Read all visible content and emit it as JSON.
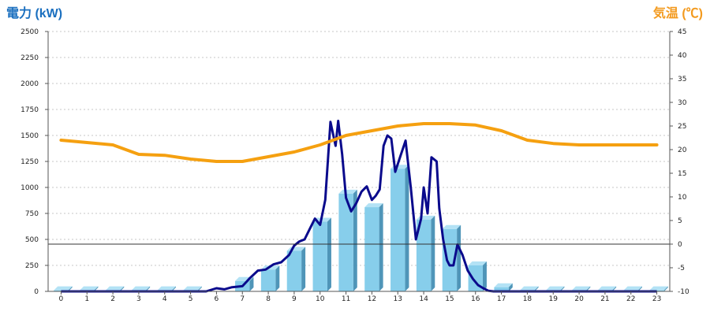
{
  "chart_data": {
    "type": "bar",
    "title": "",
    "left_axis": {
      "label": "電力 (kW)",
      "min": 0,
      "max": 2500,
      "ticks": [
        0,
        250,
        500,
        750,
        1000,
        1250,
        1500,
        1750,
        2000,
        2250,
        2500
      ]
    },
    "right_axis": {
      "label": "気温 (℃)",
      "min": -10,
      "max": 45,
      "ticks": [
        -10,
        -5,
        0,
        5,
        10,
        15,
        20,
        25,
        30,
        35,
        40,
        45
      ]
    },
    "grid": true,
    "categories": [
      "0",
      "1",
      "2",
      "3",
      "4",
      "5",
      "6",
      "7",
      "8",
      "9",
      "10",
      "11",
      "12",
      "13",
      "14",
      "15",
      "16",
      "17",
      "18",
      "19",
      "20",
      "21",
      "22",
      "23"
    ],
    "bars": {
      "axis": "left",
      "color": "#87ceeb",
      "values": [
        10,
        10,
        10,
        10,
        10,
        10,
        0,
        100,
        210,
        390,
        670,
        940,
        810,
        1180,
        690,
        600,
        250,
        40,
        10,
        10,
        10,
        10,
        10,
        10
      ]
    },
    "power_line": {
      "axis": "left",
      "color": "#0a0a8c",
      "x": [
        0,
        1,
        2,
        3,
        4,
        5,
        5.6,
        6,
        6.3,
        6.6,
        7,
        7.3,
        7.6,
        7.9,
        8.2,
        8.5,
        8.8,
        9,
        9.2,
        9.4,
        9.6,
        9.8,
        10,
        10.2,
        10.4,
        10.6,
        10.7,
        10.85,
        11,
        11.2,
        11.4,
        11.6,
        11.8,
        12,
        12.15,
        12.3,
        12.45,
        12.6,
        12.75,
        12.9,
        13.1,
        13.3,
        13.5,
        13.7,
        13.9,
        14,
        14.15,
        14.3,
        14.5,
        14.6,
        14.75,
        14.9,
        15,
        15.15,
        15.3,
        15.5,
        15.7,
        15.9,
        16.1,
        16.3,
        16.5,
        16.7,
        16.9,
        17.2,
        17.6,
        18,
        19,
        20,
        21,
        22,
        23
      ],
      "y": [
        0,
        0,
        0,
        0,
        0,
        0,
        0,
        30,
        20,
        40,
        50,
        130,
        200,
        210,
        260,
        280,
        350,
        440,
        480,
        500,
        600,
        700,
        640,
        880,
        1630,
        1400,
        1640,
        1320,
        900,
        770,
        850,
        960,
        1010,
        880,
        920,
        980,
        1400,
        1500,
        1470,
        1150,
        1300,
        1450,
        1000,
        500,
        700,
        1000,
        750,
        1290,
        1250,
        800,
        500,
        300,
        250,
        250,
        450,
        350,
        200,
        120,
        60,
        30,
        5,
        0,
        0,
        0,
        0,
        0,
        0,
        0,
        0,
        0,
        0
      ]
    },
    "temperature_line": {
      "axis": "right",
      "color": "#f5a010",
      "x": [
        0,
        1,
        2,
        3,
        4,
        5,
        6,
        7,
        8,
        9,
        10,
        11,
        12,
        13,
        14,
        15,
        16,
        17,
        18,
        19,
        20,
        21,
        22,
        23
      ],
      "y": [
        22,
        21.5,
        21,
        19,
        18.8,
        18,
        17.5,
        17.5,
        18.5,
        19.5,
        21,
        23,
        24,
        25,
        25.5,
        25.5,
        25.2,
        24,
        22,
        21.3,
        21,
        21,
        21,
        21
      ]
    }
  }
}
